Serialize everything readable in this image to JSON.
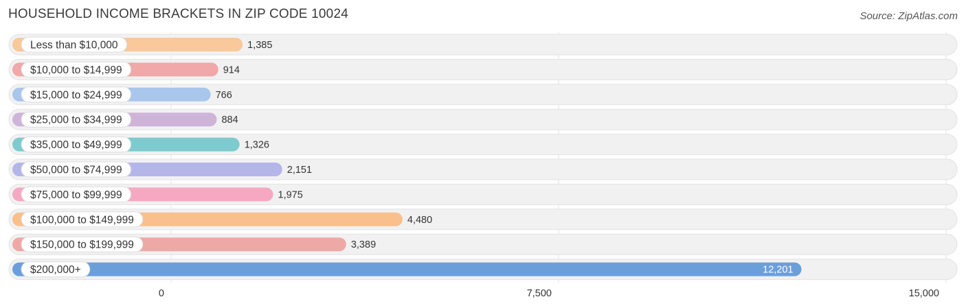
{
  "header": {
    "title": "HOUSEHOLD INCOME BRACKETS IN ZIP CODE 10024",
    "source": "Source: ZipAtlas.com"
  },
  "chart_data": {
    "type": "bar",
    "orientation": "horizontal",
    "categories": [
      "Less than $10,000",
      "$10,000 to $14,999",
      "$15,000 to $24,999",
      "$25,000 to $34,999",
      "$35,000 to $49,999",
      "$50,000 to $74,999",
      "$75,000 to $99,999",
      "$100,000 to $149,999",
      "$150,000 to $199,999",
      "$200,000+"
    ],
    "values": [
      1385,
      914,
      766,
      884,
      1326,
      2151,
      1975,
      4480,
      3389,
      12201
    ],
    "value_labels": [
      "1,385",
      "914",
      "766",
      "884",
      "1,326",
      "2,151",
      "1,975",
      "4,480",
      "3,389",
      "12,201"
    ],
    "colors": [
      "#f9c89b",
      "#f0a8a8",
      "#a9c6ec",
      "#cdb4d8",
      "#7ecbcf",
      "#b4b6ea",
      "#f6a8c2",
      "#f9c08e",
      "#eea9a6",
      "#6a9fdc"
    ],
    "xlim": [
      0,
      15000
    ],
    "x_ticks": [
      0,
      7500,
      15000
    ],
    "x_tick_labels": [
      "0",
      "7,500",
      "15,000"
    ],
    "grid": true
  }
}
